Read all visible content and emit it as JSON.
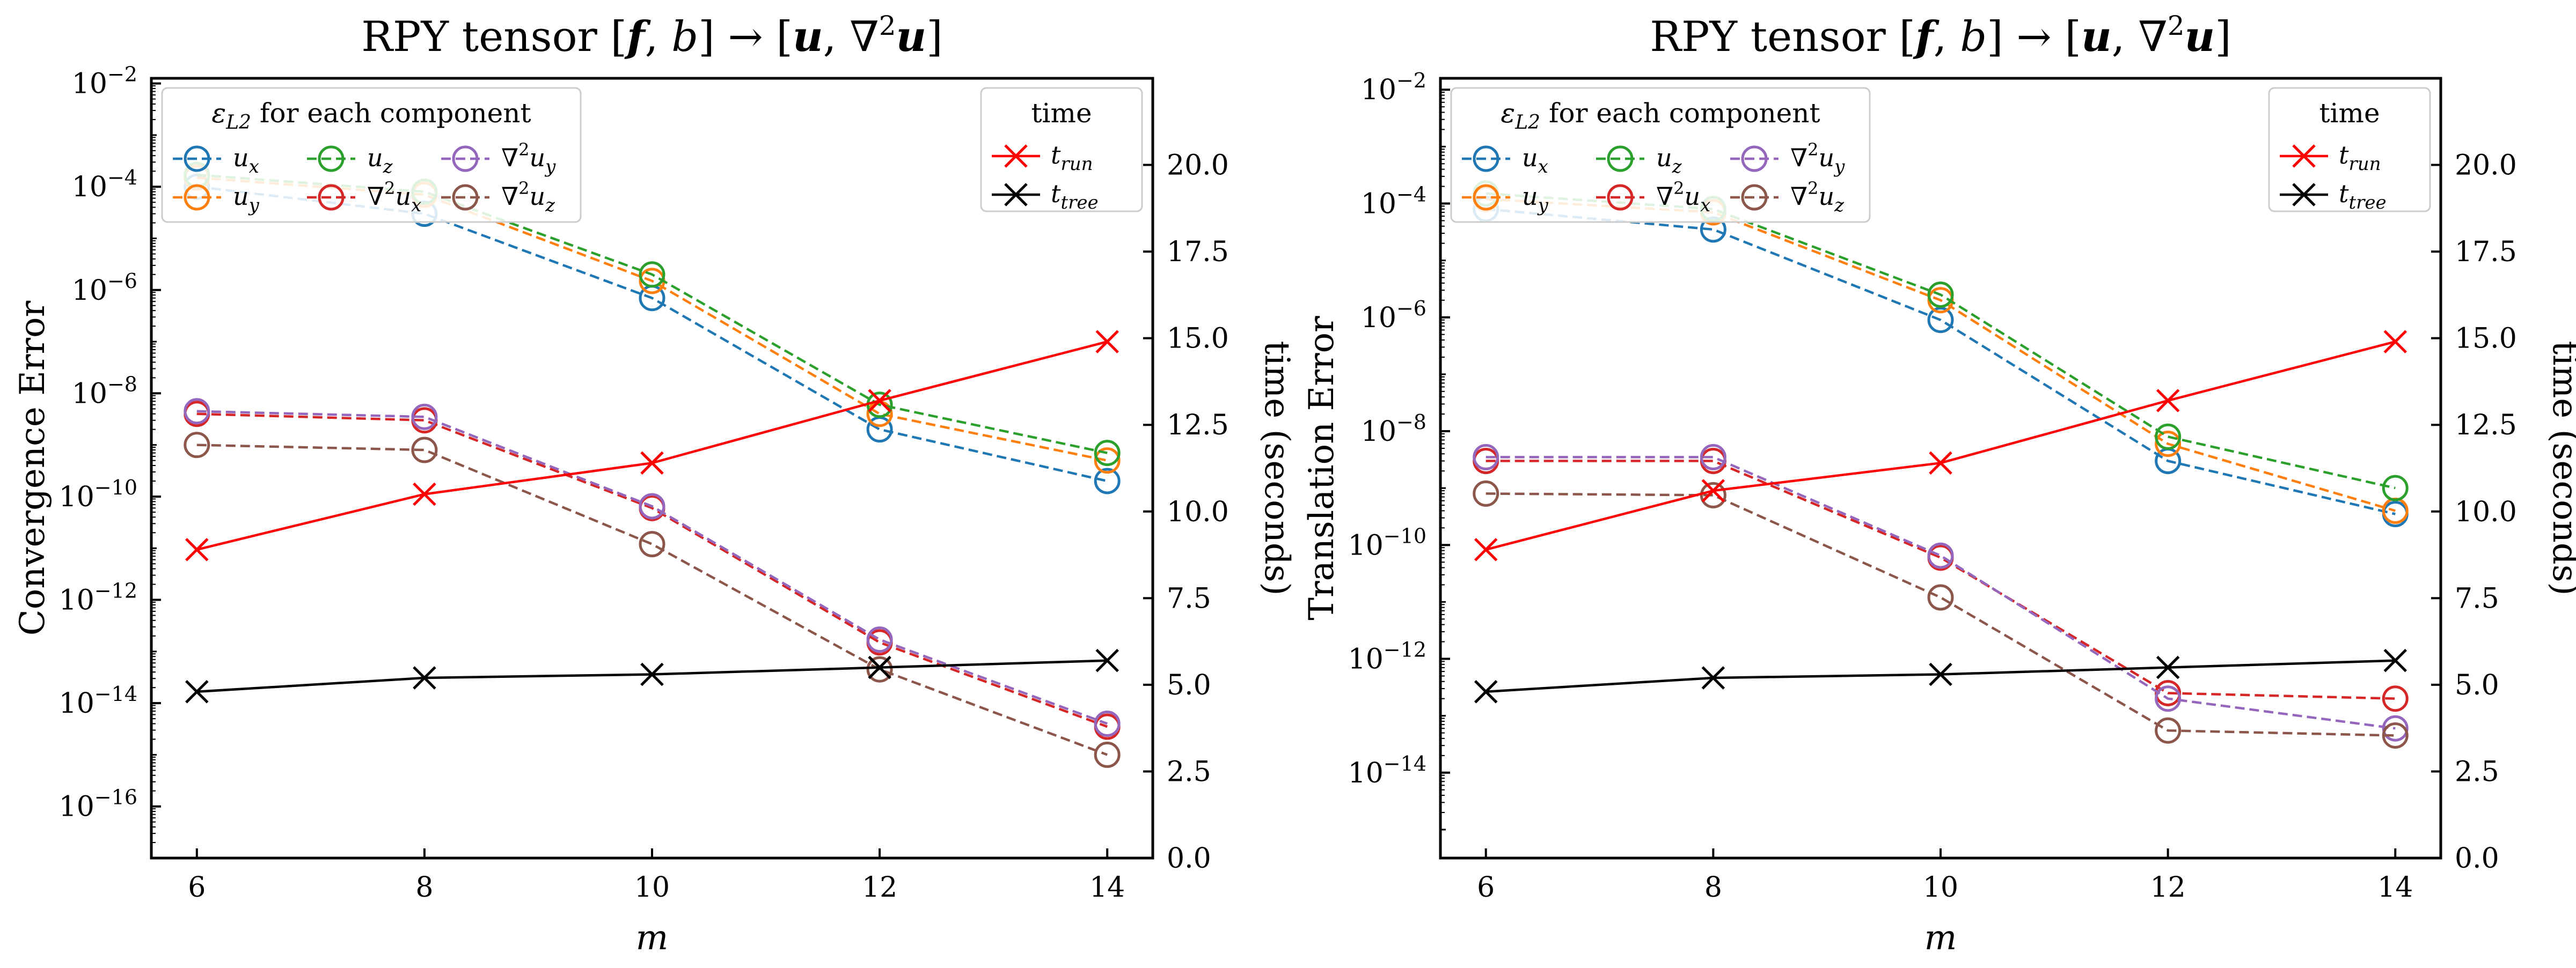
{
  "chart_data": [
    {
      "type": "line",
      "title": "RPY tensor [f, b] → [u, ∇²u]",
      "xlabel": "m",
      "ylabel": "Convergence Error",
      "y2label": "time (seconds)",
      "x": [
        6,
        8,
        10,
        12,
        14
      ],
      "xlim": [
        5.6,
        14.4
      ],
      "ylim_log10": [
        -17,
        -1.9
      ],
      "y2lim": [
        0,
        22.5
      ],
      "yticks": [
        "10^-16",
        "10^-14",
        "10^-12",
        "10^-10",
        "10^-8",
        "10^-6",
        "10^-4",
        "10^-2"
      ],
      "y2ticks": [
        "0.0",
        "2.5",
        "5.0",
        "7.5",
        "10.0",
        "12.5",
        "15.0",
        "17.5",
        "20.0"
      ],
      "legend_error_title": "ε_L2 for each component",
      "legend_time_title": "time",
      "series": [
        {
          "name": "u_x",
          "label": "ux",
          "axis": "left",
          "marker": "circle",
          "dashed": true,
          "color": "#1f77b4",
          "values": [
            0.0001,
            3e-05,
            7e-07,
            2e-09,
            2e-10
          ]
        },
        {
          "name": "u_y",
          "label": "uy",
          "axis": "left",
          "marker": "circle",
          "dashed": true,
          "color": "#ff7f0e",
          "values": [
            0.00015,
            7e-05,
            1.5e-06,
            4e-09,
            5e-10
          ]
        },
        {
          "name": "u_z",
          "label": "uz",
          "axis": "left",
          "marker": "circle",
          "dashed": true,
          "color": "#2ca02c",
          "values": [
            0.00017,
            8e-05,
            2e-06,
            6e-09,
            7e-10
          ]
        },
        {
          "name": "∇²u_x",
          "label": "∇²ux",
          "axis": "left",
          "marker": "circle",
          "dashed": true,
          "color": "#d62728",
          "values": [
            4e-09,
            3e-09,
            6e-11,
            1.5e-13,
            3.5e-15
          ]
        },
        {
          "name": "∇²u_y",
          "label": "∇²uy",
          "axis": "left",
          "marker": "circle",
          "dashed": true,
          "color": "#9467bd",
          "values": [
            4.5e-09,
            3.5e-09,
            6.5e-11,
            1.7e-13,
            4e-15
          ]
        },
        {
          "name": "∇²u_z",
          "label": "∇²uz",
          "axis": "left",
          "marker": "circle",
          "dashed": true,
          "color": "#8c564b",
          "values": [
            1e-09,
            8e-10,
            1.2e-11,
            4.5e-14,
            1e-15
          ]
        },
        {
          "name": "t_run",
          "label": "trun",
          "axis": "right",
          "marker": "x",
          "dashed": false,
          "color": "#ff0000",
          "values": [
            8.9,
            10.5,
            11.4,
            13.2,
            14.9
          ]
        },
        {
          "name": "t_tree",
          "label": "ttree",
          "axis": "right",
          "marker": "x",
          "dashed": false,
          "color": "#000000",
          "values": [
            4.8,
            5.2,
            5.3,
            5.5,
            5.7
          ]
        }
      ]
    },
    {
      "type": "line",
      "title": "RPY tensor [f, b] → [u, ∇²u]",
      "xlabel": "m",
      "ylabel": "Translation Error",
      "y2label": "time (seconds)",
      "x": [
        6,
        8,
        10,
        12,
        14
      ],
      "xlim": [
        5.6,
        14.4
      ],
      "ylim_log10": [
        -15.5,
        -1.8
      ],
      "y2lim": [
        0,
        22.5
      ],
      "yticks": [
        "10^-14",
        "10^-12",
        "10^-10",
        "10^-8",
        "10^-6",
        "10^-4",
        "10^-2"
      ],
      "y2ticks": [
        "0.0",
        "2.5",
        "5.0",
        "7.5",
        "10.0",
        "12.5",
        "15.0",
        "17.5",
        "20.0"
      ],
      "legend_error_title": "ε_L2 for each component",
      "legend_time_title": "time",
      "series": [
        {
          "name": "u_x",
          "label": "ux",
          "axis": "left",
          "marker": "circle",
          "dashed": true,
          "color": "#1f77b4",
          "values": [
            8e-05,
            3.5e-05,
            9e-07,
            3e-09,
            3.5e-10
          ]
        },
        {
          "name": "u_y",
          "label": "uy",
          "axis": "left",
          "marker": "circle",
          "dashed": true,
          "color": "#ff7f0e",
          "values": [
            0.00012,
            7e-05,
            2e-06,
            6e-09,
            4e-10
          ]
        },
        {
          "name": "u_z",
          "label": "uz",
          "axis": "left",
          "marker": "circle",
          "dashed": true,
          "color": "#2ca02c",
          "values": [
            0.00015,
            8e-05,
            2.5e-06,
            8e-09,
            1e-09
          ]
        },
        {
          "name": "∇²u_x",
          "label": "∇²ux",
          "axis": "left",
          "marker": "circle",
          "dashed": true,
          "color": "#d62728",
          "values": [
            3e-09,
            3e-09,
            6e-11,
            2.5e-13,
            2e-13
          ]
        },
        {
          "name": "∇²u_y",
          "label": "∇²uy",
          "axis": "left",
          "marker": "circle",
          "dashed": true,
          "color": "#9467bd",
          "values": [
            3.5e-09,
            3.5e-09,
            6.5e-11,
            2e-13,
            6e-14
          ]
        },
        {
          "name": "∇²u_z",
          "label": "∇²uz",
          "axis": "left",
          "marker": "circle",
          "dashed": true,
          "color": "#8c564b",
          "values": [
            8e-10,
            7.5e-10,
            1.2e-11,
            5.5e-14,
            4.5e-14
          ]
        },
        {
          "name": "t_run",
          "label": "trun",
          "axis": "right",
          "marker": "x",
          "dashed": false,
          "color": "#ff0000",
          "values": [
            8.9,
            10.6,
            11.4,
            13.2,
            14.9
          ]
        },
        {
          "name": "t_tree",
          "label": "ttree",
          "axis": "right",
          "marker": "x",
          "dashed": false,
          "color": "#000000",
          "values": [
            4.8,
            5.2,
            5.3,
            5.5,
            5.7
          ]
        }
      ]
    }
  ]
}
